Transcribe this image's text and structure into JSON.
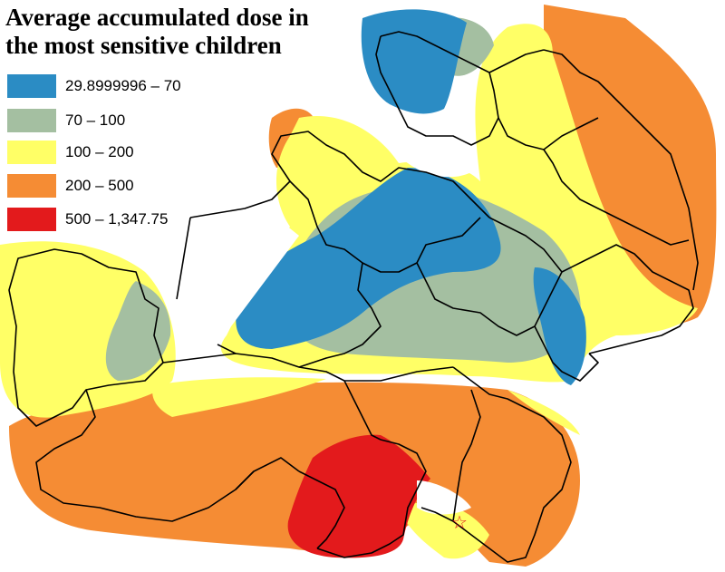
{
  "title": {
    "line1": "Average accumulated dose in",
    "line2": "the most sensitive  children"
  },
  "legend": [
    {
      "label": "29.8999996 – 70",
      "color": "#2b8cc4"
    },
    {
      "label": "70 – 100",
      "color": "#a4bfa1"
    },
    {
      "label": "100 – 200",
      "color": "#ffff66"
    },
    {
      "label": "200 – 500",
      "color": "#f58c34"
    },
    {
      "label": "500 – 1,347.75",
      "color": "#e31a1c"
    }
  ],
  "marker": {
    "symbol": "☆",
    "icon": "star-icon",
    "color": "#e31a1c"
  }
}
